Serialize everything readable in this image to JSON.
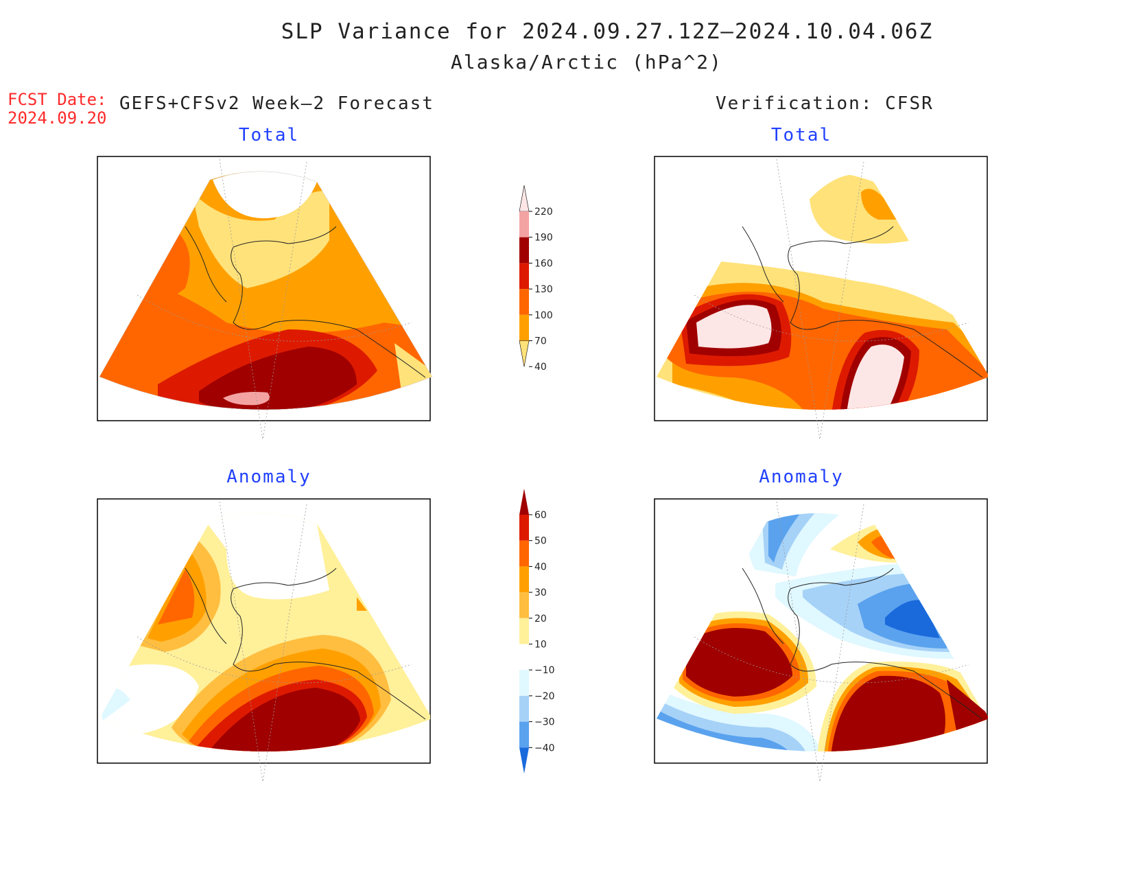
{
  "title": "SLP Variance for 2024.09.27.12Z–2024.10.04.06Z",
  "subtitle": "Alaska/Arctic (hPa^2)",
  "fcst_date_label": "FCST Date:",
  "fcst_date": "2024.09.20",
  "left_header": "GEFS+CFSv2 Week–2 Forecast",
  "right_header": "Verification: CFSR",
  "panels": {
    "forecast_total": "Total",
    "forecast_anomaly": "Anomaly",
    "verification_total": "Total",
    "verification_anomaly": "Anomaly"
  },
  "colorbar_total": {
    "levels": [
      "220",
      "190",
      "160",
      "130",
      "100",
      "70",
      "40"
    ],
    "colors": [
      "#fde6e6",
      "#f4a3a3",
      "#a00000",
      "#dd1a00",
      "#ff6600",
      "#ffa000",
      "#ffe27a"
    ]
  },
  "colorbar_anomaly": {
    "levels": [
      "60",
      "50",
      "40",
      "30",
      "20",
      "10",
      "−10",
      "−20",
      "−30",
      "−40"
    ],
    "colors": [
      "#a00000",
      "#dd1a00",
      "#ff6600",
      "#ffa000",
      "#ffbe40",
      "#fff09a",
      "#ffffff",
      "#e0f8ff",
      "#a6d2f8",
      "#5aa2ee",
      "#1a6adc"
    ]
  }
}
